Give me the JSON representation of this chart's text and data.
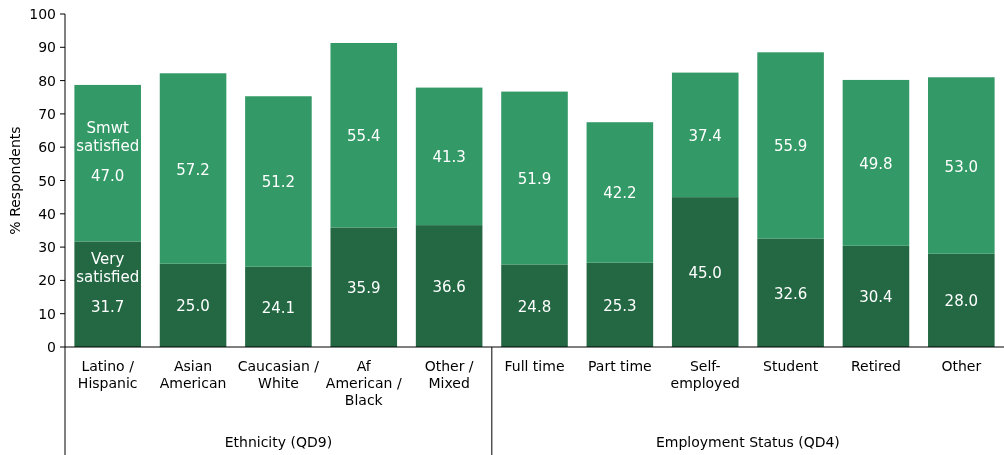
{
  "chart_data": {
    "type": "bar",
    "stacked": true,
    "ylabel": "% Respondents",
    "ylim": [
      0,
      100
    ],
    "yticks": [
      0,
      10,
      20,
      30,
      40,
      50,
      60,
      70,
      80,
      90,
      100
    ],
    "grid": false,
    "legend": false,
    "categories": [
      "Latino / Hispanic",
      "Asian American",
      "Caucasian / White",
      "Af American / Black",
      "Other / Mixed",
      "Full time",
      "Part time",
      "Self-employed",
      "Student",
      "Retired",
      "Other"
    ],
    "series": [
      {
        "name": "Very satisfied",
        "color": "#236843",
        "values": [
          31.7,
          25.0,
          24.1,
          35.9,
          36.6,
          24.8,
          25.3,
          45.0,
          32.6,
          30.4,
          28.0
        ],
        "value_labels": [
          "31.7",
          "25.0",
          "24.1",
          "35.9",
          "36.6",
          "24.8",
          "25.3",
          "45.0",
          "32.6",
          "30.4",
          "28.0"
        ]
      },
      {
        "name": "Smwt satisfied",
        "color": "#339966",
        "values": [
          47.0,
          57.2,
          51.2,
          55.4,
          41.3,
          51.9,
          42.2,
          37.4,
          55.9,
          49.8,
          53.0
        ],
        "value_labels": [
          "47.0",
          "57.2",
          "51.2",
          "55.4",
          "41.3",
          "51.9",
          "42.2",
          "37.4",
          "55.9",
          "49.8",
          "53.0"
        ]
      }
    ],
    "annotations": [
      "Ethnicity (QD9)",
      "Employment Status (QD4)"
    ]
  }
}
